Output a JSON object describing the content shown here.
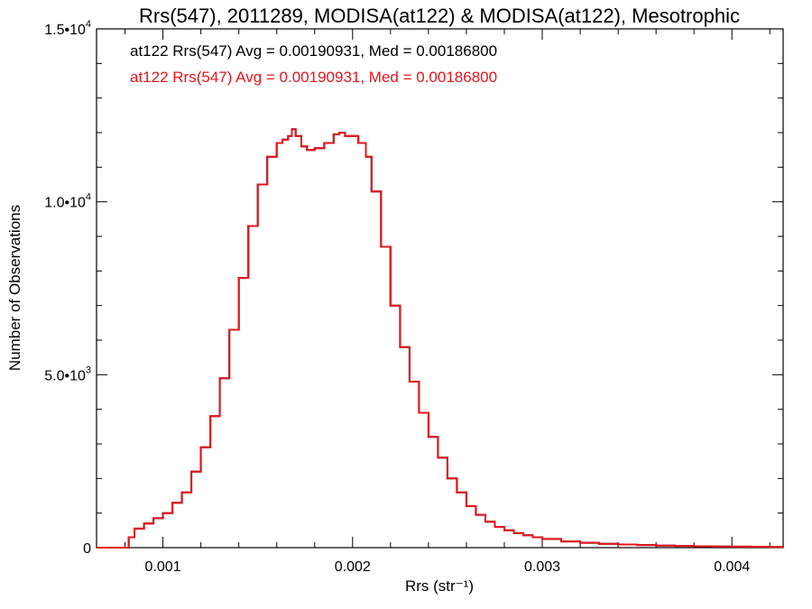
{
  "chart_data": {
    "type": "line",
    "title": "Rrs(547), 2011289, MODISA(at122) & MODISA(at122), Mesotrophic",
    "xlabel": "Rrs (str⁻¹)",
    "ylabel": "Number of Observations",
    "xlim": [
      0.00065,
      0.00427
    ],
    "ylim": [
      0,
      15000
    ],
    "x_ticks": [
      0.001,
      0.002,
      0.003,
      0.004
    ],
    "x_tick_labels": [
      "0.001",
      "0.002",
      "0.003",
      "0.004"
    ],
    "y_ticks": [
      0,
      5000,
      10000,
      15000
    ],
    "y_tick_labels": [
      {
        "mantissa": "0",
        "exponent": ""
      },
      {
        "mantissa": "5.0•10",
        "exponent": "3"
      },
      {
        "mantissa": "1.0•10",
        "exponent": "4"
      },
      {
        "mantissa": "1.5•10",
        "exponent": "4"
      }
    ],
    "grid": false,
    "annotations": [
      {
        "text": "at122 Rrs(547) Avg = 0.00190931, Med = 0.00186800",
        "color": "#000000"
      },
      {
        "text": "at122 Rrs(547) Avg = 0.00190931, Med = 0.00186800",
        "color": "#e8141c"
      }
    ],
    "series": [
      {
        "color": "#000000",
        "x": [
          0.00065,
          0.0008,
          0.00082,
          0.00085,
          0.0009,
          0.00095,
          0.001,
          0.00105,
          0.0011,
          0.00115,
          0.0012,
          0.00125,
          0.0013,
          0.00135,
          0.0014,
          0.00145,
          0.0015,
          0.00155,
          0.0016,
          0.00163,
          0.00166,
          0.00168,
          0.0017,
          0.00173,
          0.00176,
          0.0018,
          0.00185,
          0.0019,
          0.00193,
          0.00196,
          0.002,
          0.00203,
          0.00207,
          0.0021,
          0.00215,
          0.0022,
          0.00225,
          0.0023,
          0.00235,
          0.0024,
          0.00245,
          0.0025,
          0.00255,
          0.0026,
          0.00265,
          0.0027,
          0.00275,
          0.0028,
          0.00285,
          0.0029,
          0.00295,
          0.003,
          0.0031,
          0.0032,
          0.0033,
          0.0034,
          0.0035,
          0.0036,
          0.0037,
          0.0038,
          0.0039,
          0.004,
          0.0041,
          0.0042,
          0.00427
        ],
        "y": [
          0,
          0,
          300,
          550,
          700,
          850,
          1000,
          1300,
          1600,
          2200,
          2900,
          3800,
          4900,
          6300,
          7800,
          9300,
          10500,
          11300,
          11700,
          11800,
          11900,
          12100,
          11900,
          11600,
          11500,
          11550,
          11700,
          11950,
          12000,
          11900,
          11900,
          11700,
          11300,
          10300,
          8700,
          7000,
          5800,
          4800,
          3900,
          3200,
          2600,
          2000,
          1600,
          1200,
          950,
          750,
          600,
          500,
          420,
          360,
          300,
          250,
          180,
          140,
          110,
          90,
          75,
          60,
          50,
          40,
          35,
          30,
          25,
          20,
          15
        ]
      },
      {
        "color": "#e8141c",
        "x": [
          0.00065,
          0.0008,
          0.00082,
          0.00085,
          0.0009,
          0.00095,
          0.001,
          0.00105,
          0.0011,
          0.00115,
          0.0012,
          0.00125,
          0.0013,
          0.00135,
          0.0014,
          0.00145,
          0.0015,
          0.00155,
          0.0016,
          0.00163,
          0.00166,
          0.00168,
          0.0017,
          0.00173,
          0.00176,
          0.0018,
          0.00185,
          0.0019,
          0.00193,
          0.00196,
          0.002,
          0.00203,
          0.00207,
          0.0021,
          0.00215,
          0.0022,
          0.00225,
          0.0023,
          0.00235,
          0.0024,
          0.00245,
          0.0025,
          0.00255,
          0.0026,
          0.00265,
          0.0027,
          0.00275,
          0.0028,
          0.00285,
          0.0029,
          0.00295,
          0.003,
          0.0031,
          0.0032,
          0.0033,
          0.0034,
          0.0035,
          0.0036,
          0.0037,
          0.0038,
          0.0039,
          0.004,
          0.0041,
          0.0042,
          0.00427
        ],
        "y": [
          0,
          0,
          300,
          550,
          700,
          850,
          1000,
          1300,
          1600,
          2200,
          2900,
          3800,
          4900,
          6300,
          7800,
          9300,
          10500,
          11300,
          11700,
          11800,
          11900,
          12100,
          11900,
          11600,
          11500,
          11550,
          11700,
          11950,
          12000,
          11900,
          11900,
          11700,
          11300,
          10300,
          8700,
          7000,
          5800,
          4800,
          3900,
          3200,
          2600,
          2000,
          1600,
          1200,
          950,
          750,
          600,
          500,
          420,
          360,
          300,
          250,
          180,
          140,
          110,
          90,
          75,
          60,
          50,
          40,
          35,
          30,
          25,
          20,
          15
        ]
      }
    ]
  }
}
